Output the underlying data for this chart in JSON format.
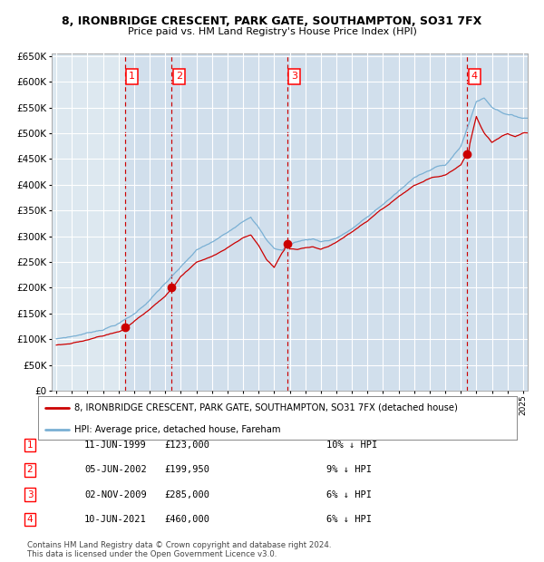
{
  "title": "8, IRONBRIDGE CRESCENT, PARK GATE, SOUTHAMPTON, SO31 7FX",
  "subtitle": "Price paid vs. HM Land Registry's House Price Index (HPI)",
  "x_start_year": 1995,
  "x_end_year": 2025,
  "y_min": 0,
  "y_max": 650000,
  "y_ticks": [
    0,
    50000,
    100000,
    150000,
    200000,
    250000,
    300000,
    350000,
    400000,
    450000,
    500000,
    550000,
    600000,
    650000
  ],
  "sale_dates_decimal": [
    1999.44,
    2002.42,
    2009.84,
    2021.44
  ],
  "sale_prices": [
    123000,
    199950,
    285000,
    460000
  ],
  "sale_labels": [
    "1",
    "2",
    "3",
    "4"
  ],
  "red_line_color": "#cc0000",
  "blue_line_color": "#7ab0d4",
  "background_color": "#dde8f0",
  "grid_color": "#ffffff",
  "vline_color": "#cc0000",
  "legend_label_red": "8, IRONBRIDGE CRESCENT, PARK GATE, SOUTHAMPTON, SO31 7FX (detached house)",
  "legend_label_blue": "HPI: Average price, detached house, Fareham",
  "table_rows": [
    {
      "num": "1",
      "date": "11-JUN-1999",
      "price": "£123,000",
      "hpi": "10% ↓ HPI"
    },
    {
      "num": "2",
      "date": "05-JUN-2002",
      "price": "£199,950",
      "hpi": "9% ↓ HPI"
    },
    {
      "num": "3",
      "date": "02-NOV-2009",
      "price": "£285,000",
      "hpi": "6% ↓ HPI"
    },
    {
      "num": "4",
      "date": "10-JUN-2021",
      "price": "£460,000",
      "hpi": "6% ↓ HPI"
    }
  ],
  "footnote1": "Contains HM Land Registry data © Crown copyright and database right 2024.",
  "footnote2": "This data is licensed under the Open Government Licence v3.0.",
  "hpi_key_x": [
    1995.0,
    1996.0,
    1997.0,
    1998.0,
    1999.0,
    2000.0,
    2001.0,
    2002.0,
    2003.0,
    2004.0,
    2005.0,
    2006.0,
    2007.0,
    2007.5,
    2008.0,
    2008.5,
    2009.0,
    2009.5,
    2010.0,
    2010.5,
    2011.0,
    2011.5,
    2012.0,
    2012.5,
    2013.0,
    2013.5,
    2014.0,
    2015.0,
    2016.0,
    2017.0,
    2018.0,
    2018.5,
    2019.0,
    2019.5,
    2020.0,
    2020.5,
    2021.0,
    2021.5,
    2022.0,
    2022.5,
    2023.0,
    2023.5,
    2024.0,
    2024.5,
    2025.0
  ],
  "hpi_key_y": [
    100000,
    105000,
    112000,
    120000,
    132000,
    150000,
    178000,
    210000,
    240000,
    272000,
    287000,
    305000,
    330000,
    340000,
    320000,
    295000,
    278000,
    275000,
    285000,
    292000,
    295000,
    297000,
    293000,
    295000,
    300000,
    308000,
    318000,
    340000,
    365000,
    390000,
    415000,
    425000,
    432000,
    440000,
    440000,
    458000,
    478000,
    520000,
    565000,
    572000,
    555000,
    548000,
    542000,
    538000,
    535000
  ],
  "red_key_x": [
    1995.0,
    1996.0,
    1997.0,
    1998.0,
    1999.0,
    1999.44,
    2000.0,
    2001.0,
    2002.0,
    2002.42,
    2003.0,
    2003.5,
    2004.0,
    2005.0,
    2006.0,
    2007.0,
    2007.5,
    2008.0,
    2008.5,
    2009.0,
    2009.5,
    2009.84,
    2010.0,
    2010.5,
    2011.0,
    2011.5,
    2012.0,
    2012.5,
    2013.0,
    2014.0,
    2015.0,
    2016.0,
    2017.0,
    2018.0,
    2019.0,
    2020.0,
    2021.0,
    2021.44,
    2021.8,
    2022.0,
    2022.3,
    2022.5,
    2023.0,
    2023.5,
    2024.0,
    2024.5,
    2025.0
  ],
  "red_key_y": [
    88000,
    92000,
    99000,
    108000,
    118000,
    123000,
    138000,
    160000,
    185000,
    199950,
    225000,
    238000,
    252000,
    263000,
    280000,
    300000,
    305000,
    285000,
    258000,
    242000,
    270000,
    285000,
    278000,
    278000,
    282000,
    283000,
    278000,
    283000,
    290000,
    310000,
    330000,
    352000,
    374000,
    395000,
    408000,
    415000,
    435000,
    460000,
    505000,
    530000,
    510000,
    498000,
    480000,
    490000,
    498000,
    492000,
    500000
  ]
}
